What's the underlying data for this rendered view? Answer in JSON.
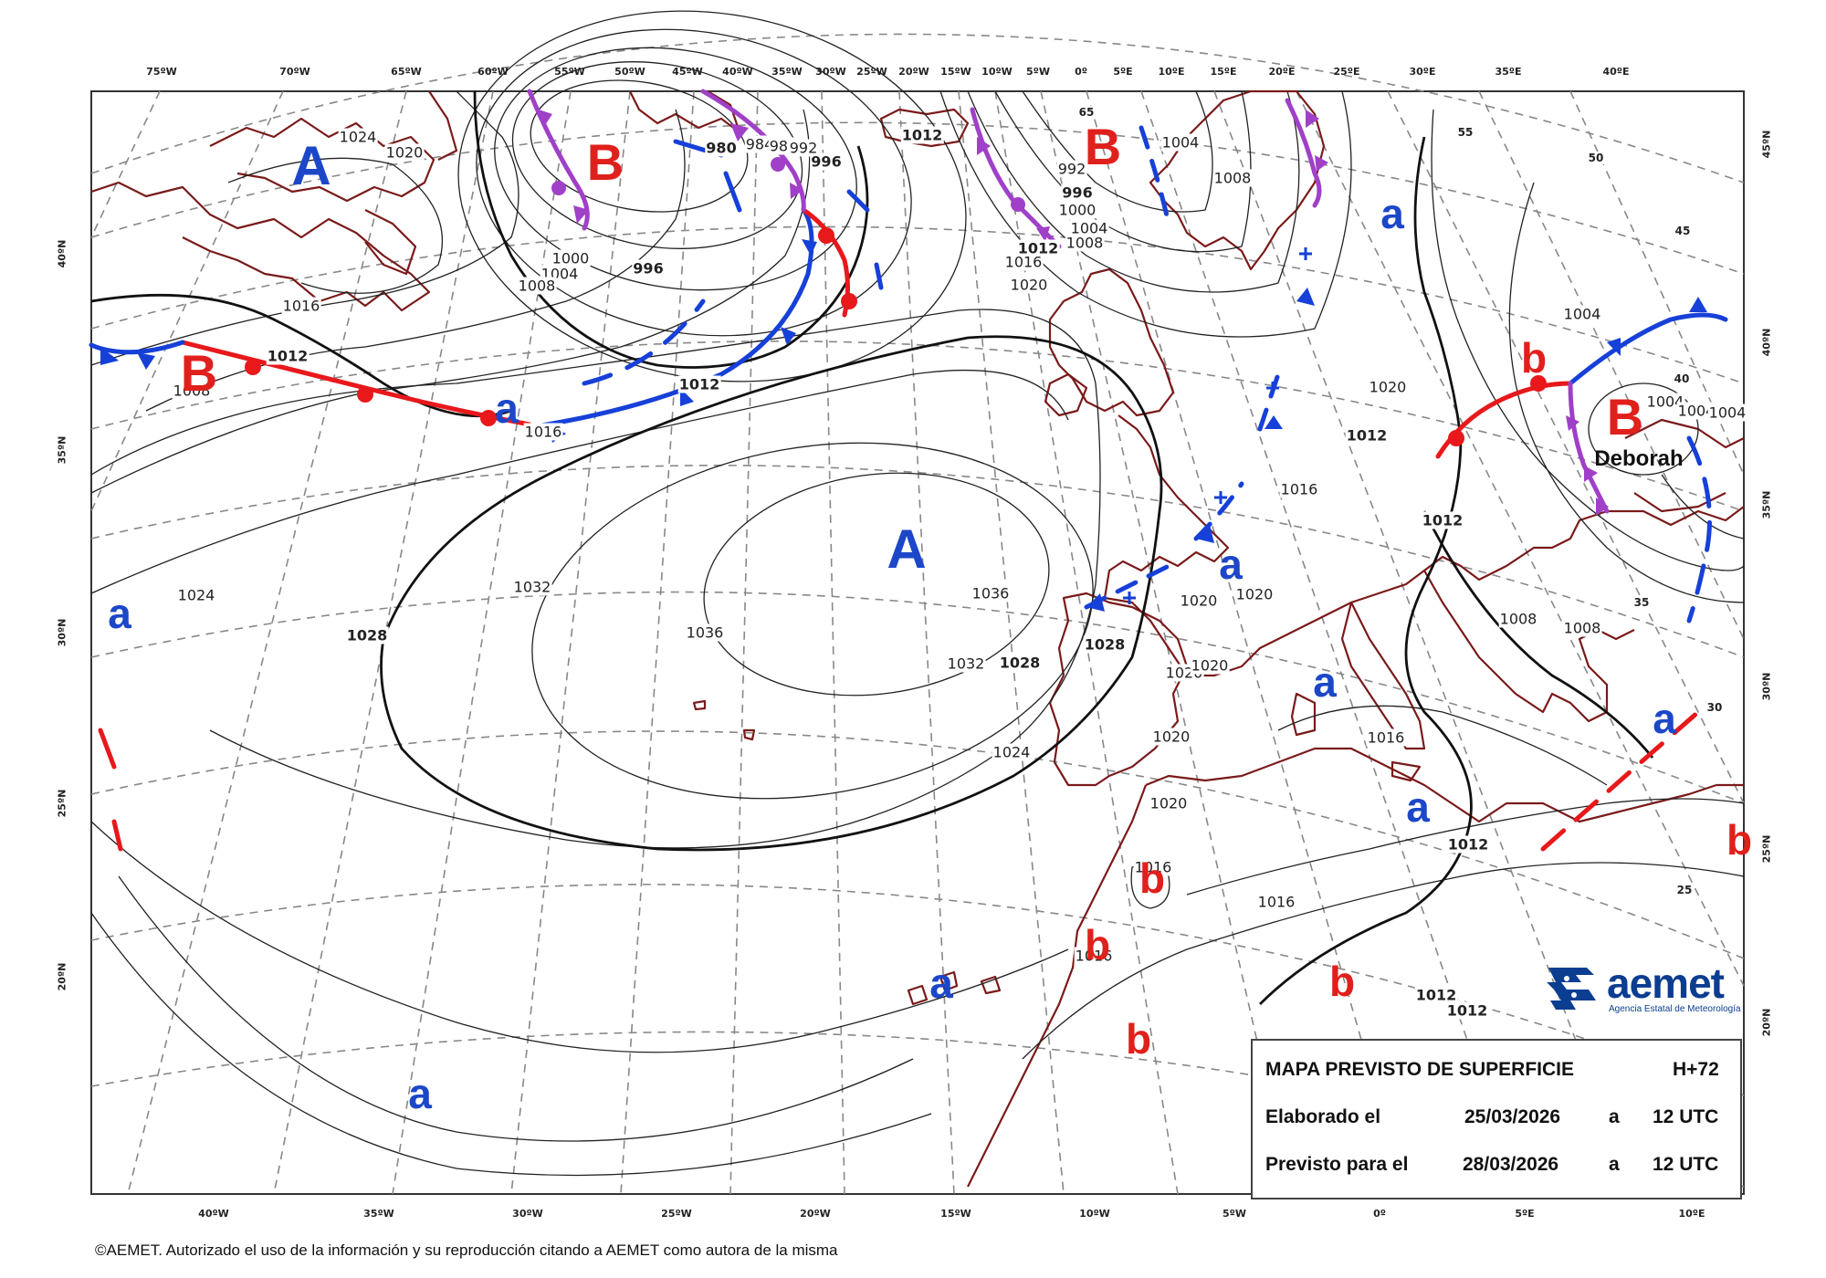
{
  "map": {
    "top_longitude_labels": [
      "75ºW",
      "70ºW",
      "65ºW",
      "60ºW",
      "55ºW",
      "50ºW",
      "45ºW",
      "40ºW",
      "35ºW",
      "30ºW",
      "25ºW",
      "20ºW",
      "15ºW",
      "10ºW",
      "5ºW",
      "0º",
      "5ºE",
      "10ºE",
      "15ºE",
      "20ºE",
      "25ºE",
      "30ºE",
      "35ºE",
      "40ºE"
    ],
    "bottom_longitude_labels": [
      "40ºW",
      "35ºW",
      "30ºW",
      "25ºW",
      "20ºW",
      "15ºW",
      "10ºW",
      "5ºW",
      "0º",
      "5ºE",
      "10ºE"
    ],
    "left_latitude_labels": [
      "40ºN",
      "35ºN",
      "30ºN",
      "25ºN",
      "20ºN"
    ],
    "right_latitude_labels": [
      "45ºN",
      "40ºN",
      "35ºN",
      "30ºN",
      "25ºN",
      "20ºN"
    ],
    "high_centers": [
      "A",
      "A"
    ],
    "low_centers": [
      "B",
      "B",
      "B",
      "B"
    ],
    "relative_highs": [
      "a",
      "a",
      "a",
      "a",
      "a",
      "a",
      "a",
      "a",
      "a"
    ],
    "relative_lows": [
      "b",
      "b",
      "b",
      "b",
      "b",
      "b"
    ],
    "storm_name": "Deborah",
    "isobar_labels": [
      "1024",
      "1020",
      "1016",
      "1012",
      "1008",
      "996",
      "1000",
      "1004",
      "1008",
      "980",
      "984",
      "988",
      "992",
      "996",
      "1012",
      "992",
      "996",
      "1000",
      "1004",
      "1008",
      "1012",
      "1016",
      "1020",
      "1004",
      "1008",
      "1016",
      "1012",
      "1032",
      "1036",
      "1036",
      "1032",
      "1028",
      "1028",
      "1028",
      "1024",
      "1024",
      "1020",
      "1020",
      "1020",
      "1020",
      "1020",
      "1020",
      "1016",
      "1012",
      "1016",
      "1016",
      "1016",
      "1020",
      "1012",
      "1004",
      "1004",
      "1004",
      "1004",
      "1008",
      "1008",
      "1012",
      "1012",
      "1016",
      "1012",
      "1016"
    ],
    "lat_line_labels": [
      "65",
      "55",
      "50",
      "45",
      "40",
      "35",
      "30",
      "25"
    ],
    "colors": {
      "high": "#1c47c8",
      "low": "#e0201c",
      "warm_front": "#e8181b",
      "cold_front": "#1640d8",
      "occluded_front": "#a040c8",
      "coastline": "#7a1a1a"
    }
  },
  "info": {
    "title": "MAPA PREVISTO DE SUPERFICIE",
    "lead": "H+72",
    "elaborated_label": "Elaborado el",
    "elaborated_date": "25/03/2026",
    "elaborated_at": "a",
    "elaborated_time": "12 UTC",
    "valid_label": "Previsto para el",
    "valid_date": "28/03/2026",
    "valid_at": "a",
    "valid_time": "12 UTC"
  },
  "logo": {
    "word": "aemet",
    "sub": "Agencia Estatal de Meteorología"
  },
  "footer": "©AEMET. Autorizado el uso de la información y su reproducción citando a AEMET como autora de la misma"
}
